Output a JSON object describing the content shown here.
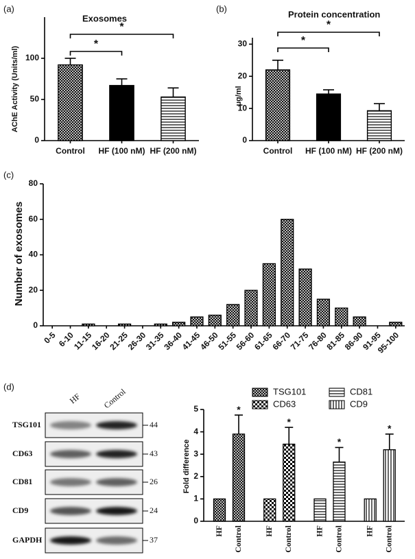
{
  "chart_data": [
    {
      "type": "bar",
      "panel_label": "(a)",
      "title": "Exosomes",
      "y_label": "AChE Activity (Units/ml)",
      "categories": [
        "Control",
        "HF (100 nM)",
        "HF (200 nM)"
      ],
      "values": [
        92,
        67,
        53
      ],
      "errors": [
        8,
        8,
        11
      ],
      "patterns": [
        "crosshatch",
        "solid",
        "hlines"
      ],
      "ylim": [
        0,
        150
      ],
      "yticks": [
        0,
        50,
        100
      ],
      "significance": [
        {
          "from": 0,
          "to": 1,
          "label": "*"
        },
        {
          "from": 0,
          "to": 2,
          "label": "*"
        }
      ]
    },
    {
      "type": "bar",
      "panel_label": "(b)",
      "title": "Protein concentration",
      "y_label": "μg/ml",
      "categories": [
        "Control",
        "HF (100 nM)",
        "HF (200 nM)"
      ],
      "values": [
        22,
        14.5,
        9.3
      ],
      "errors": [
        3,
        1.3,
        2.2
      ],
      "patterns": [
        "crosshatch",
        "solid",
        "hlines"
      ],
      "ylim": [
        0,
        32
      ],
      "yticks": [
        0,
        10,
        20,
        30
      ],
      "significance": [
        {
          "from": 0,
          "to": 1,
          "label": "*"
        },
        {
          "from": 0,
          "to": 2,
          "label": "*"
        }
      ]
    },
    {
      "type": "histogram",
      "panel_label": "(c)",
      "y_label": "Number of exosomes",
      "categories": [
        "0-5",
        "6-10",
        "11-15",
        "16-20",
        "21-25",
        "26-30",
        "31-35",
        "36-40",
        "41-45",
        "46-50",
        "51-55",
        "56-60",
        "61-65",
        "66-70",
        "71-75",
        "76-80",
        "81-85",
        "86-90",
        "91-95",
        "95-100"
      ],
      "values": [
        0,
        0,
        1,
        0,
        1,
        0,
        1,
        2,
        5,
        6,
        12,
        20,
        35,
        60,
        32,
        15,
        10,
        5,
        0,
        2
      ],
      "pattern": "crosshatch",
      "ylim": [
        0,
        80
      ],
      "yticks": [
        0,
        20,
        40,
        60,
        80
      ]
    },
    {
      "type": "grouped_bar",
      "panel_label": "(d)",
      "y_label": "Fold difference",
      "categories": [
        "HF",
        "Control"
      ],
      "series": [
        {
          "name": "TSG101",
          "pattern": "crosshatch",
          "values": [
            1,
            3.9
          ],
          "errors": [
            null,
            0.85
          ],
          "markers": [
            null,
            "*"
          ]
        },
        {
          "name": "CD63",
          "pattern": "checker",
          "values": [
            1,
            3.45
          ],
          "errors": [
            null,
            0.75
          ],
          "markers": [
            null,
            "*"
          ]
        },
        {
          "name": "CD81",
          "pattern": "hlines",
          "values": [
            1,
            2.65
          ],
          "errors": [
            null,
            0.65
          ],
          "markers": [
            null,
            "*"
          ]
        },
        {
          "name": "CD9",
          "pattern": "vlines",
          "values": [
            1,
            3.2
          ],
          "errors": [
            null,
            0.7
          ],
          "markers": [
            null,
            "*"
          ]
        }
      ],
      "ylim": [
        0,
        5
      ],
      "yticks": [
        0,
        1,
        2,
        3,
        4,
        5
      ]
    }
  ],
  "blot": {
    "lanes": [
      "HF",
      "Control"
    ],
    "rows": [
      {
        "label": "TSG101",
        "kda": 44
      },
      {
        "label": "CD63",
        "kda": 43
      },
      {
        "label": "CD81",
        "kda": 26
      },
      {
        "label": "CD9",
        "kda": 24
      },
      {
        "label": "GAPDH",
        "kda": 37
      }
    ]
  }
}
